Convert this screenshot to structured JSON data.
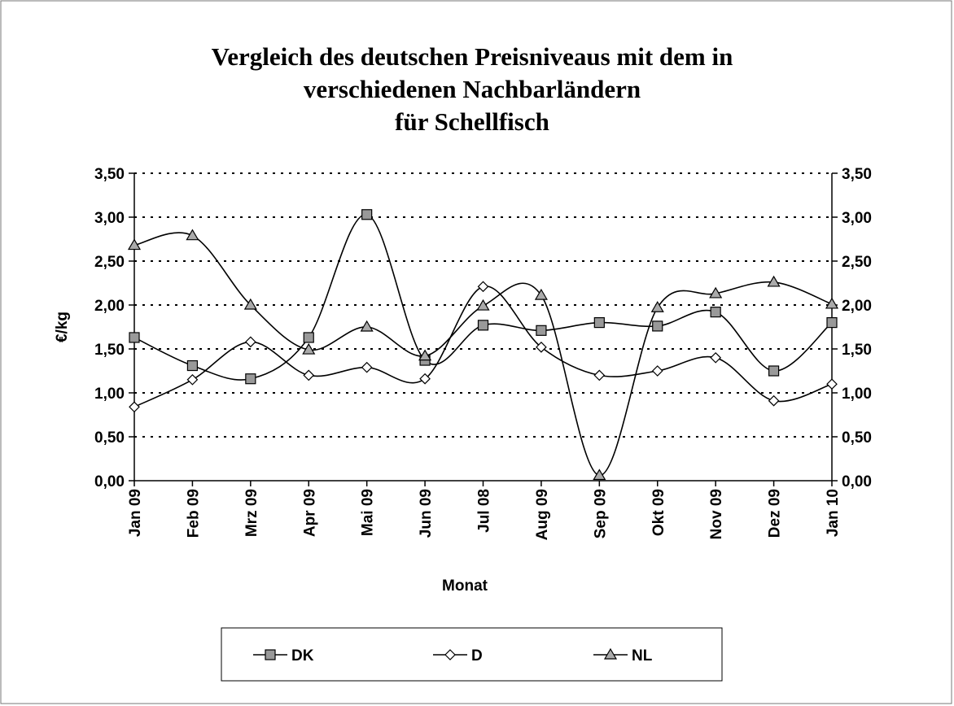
{
  "chart_data": {
    "type": "line",
    "title": "Vergleich des deutschen Preisniveaus mit dem in verschiedenen Nachbarländern für Schellfisch",
    "title_lines": [
      "Vergleich des deutschen Preisniveaus mit dem in",
      "verschiedenen Nachbarländern",
      "für Schellfisch"
    ],
    "xlabel": "Monat",
    "ylabel": "€/kg",
    "categories": [
      "Jan 09",
      "Feb 09",
      "Mrz 09",
      "Apr 09",
      "Mai 09",
      "Jun 09",
      "Jul 08",
      "Aug 09",
      "Sep 09",
      "Okt 09",
      "Nov 09",
      "Dez 09",
      "Jan 10"
    ],
    "series": [
      {
        "name": "DK",
        "color": "#999999",
        "marker": "square",
        "values": [
          1.63,
          1.31,
          1.16,
          1.63,
          3.03,
          1.37,
          1.77,
          1.71,
          1.8,
          1.76,
          1.92,
          1.25,
          1.8
        ]
      },
      {
        "name": "D",
        "color": "#ffffff",
        "marker": "diamond",
        "values": [
          0.84,
          1.15,
          1.58,
          1.2,
          1.29,
          1.16,
          2.21,
          1.52,
          1.2,
          1.25,
          1.4,
          0.91,
          1.1
        ]
      },
      {
        "name": "NL",
        "color": "#aaaaaa",
        "marker": "triangle",
        "values": [
          2.68,
          2.79,
          2.0,
          1.49,
          1.75,
          1.42,
          1.99,
          2.11,
          0.06,
          1.97,
          2.13,
          2.26,
          2.01
        ]
      }
    ],
    "ylim": [
      0,
      3.5
    ],
    "yticks": [
      {
        "value": 0,
        "label": "0,00"
      },
      {
        "value": 0.5,
        "label": "0,50"
      },
      {
        "value": 1,
        "label": "1,00"
      },
      {
        "value": 1.5,
        "label": "1,50"
      },
      {
        "value": 2,
        "label": "2,00"
      },
      {
        "value": 2.5,
        "label": "2,50"
      },
      {
        "value": 3,
        "label": "3,00"
      },
      {
        "value": 3.5,
        "label": "3,50"
      }
    ],
    "y2lim": [
      0,
      3.5
    ],
    "y2ticks": [
      {
        "value": 0,
        "label": "0,00"
      },
      {
        "value": 0.5,
        "label": "0,50"
      },
      {
        "value": 1,
        "label": "1,00"
      },
      {
        "value": 1.5,
        "label": "1,50"
      },
      {
        "value": 2,
        "label": "2,00"
      },
      {
        "value": 2.5,
        "label": "2,50"
      },
      {
        "value": 3,
        "label": "3,00"
      },
      {
        "value": 3.5,
        "label": "3,50"
      }
    ],
    "grid": true,
    "smooth": true,
    "legend": "bottom"
  }
}
